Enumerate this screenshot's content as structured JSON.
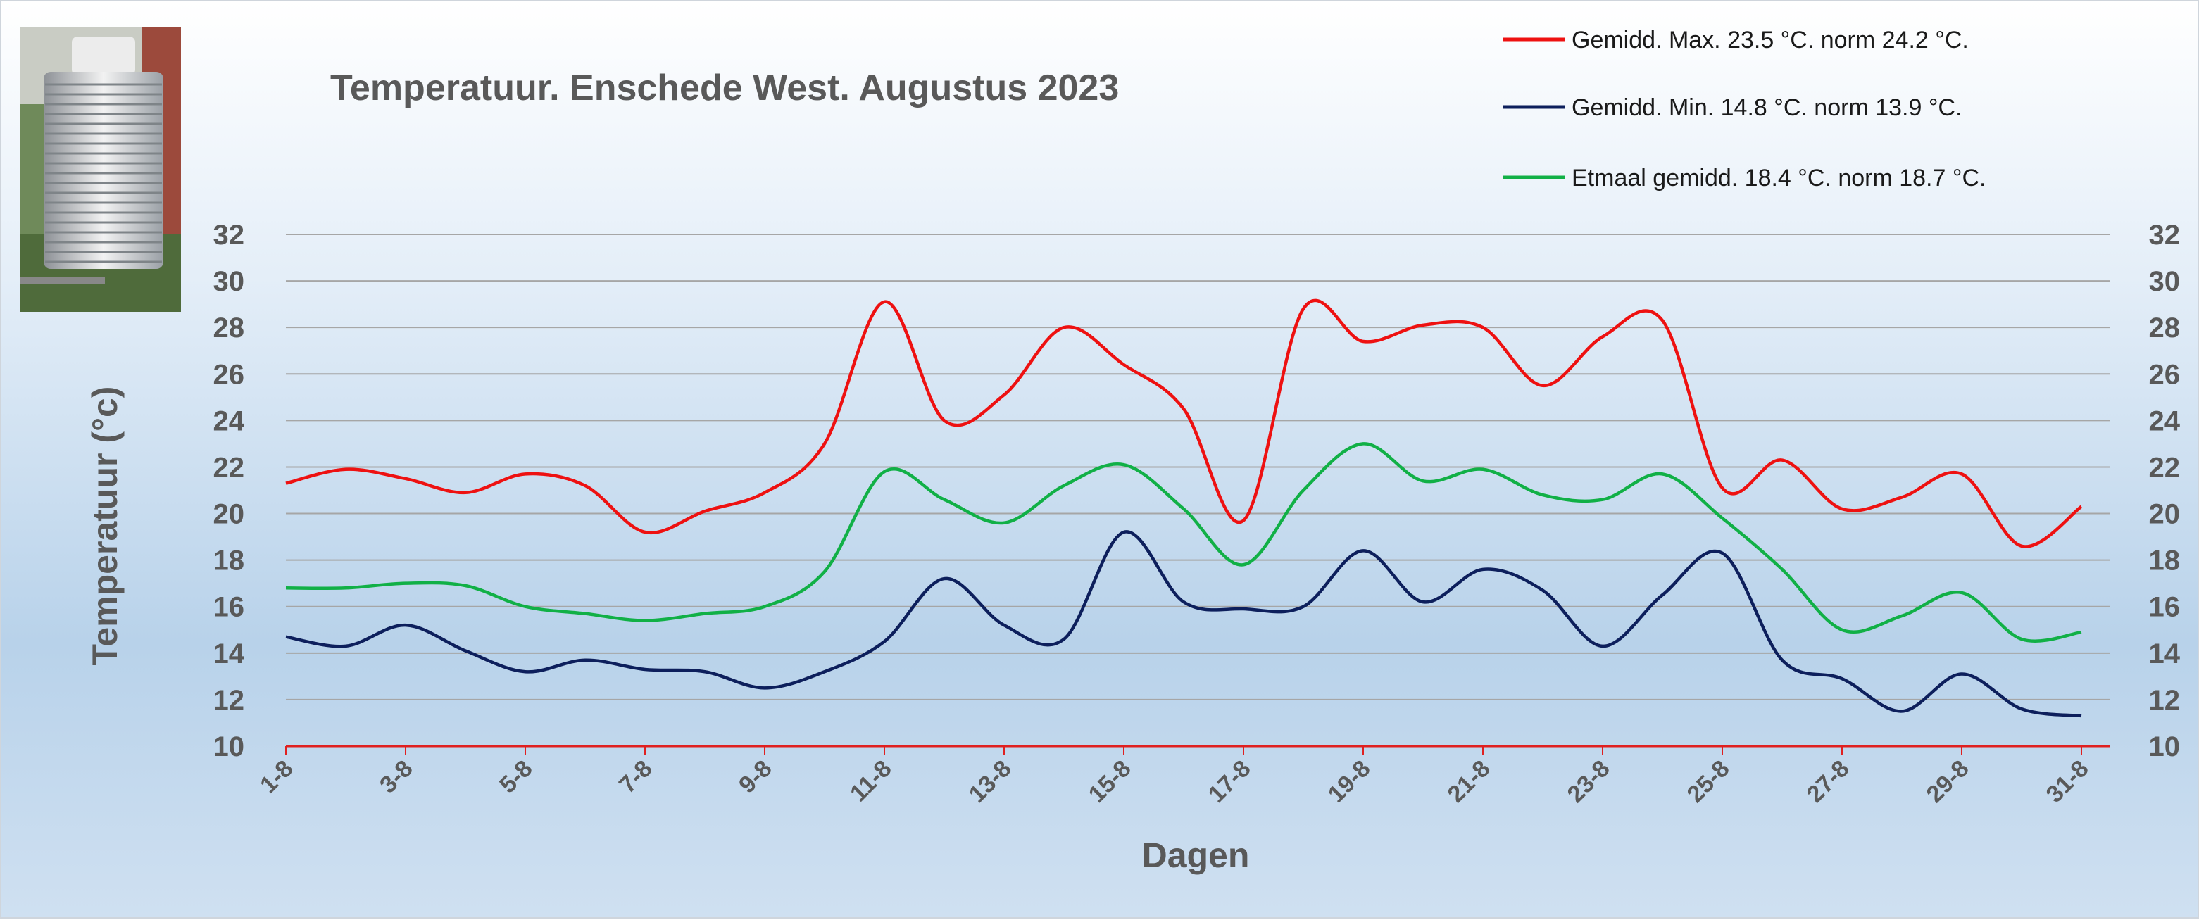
{
  "chart_data": {
    "type": "line",
    "title": "Temperatuur. Enschede West. Augustus 2023",
    "xlabel": "Dagen",
    "ylabel": "Temperatuur (°c)",
    "ylim": [
      10,
      32
    ],
    "yticks": [
      10,
      12,
      14,
      16,
      18,
      20,
      22,
      24,
      26,
      28,
      30,
      32
    ],
    "grid": true,
    "legend_position": "top-right",
    "categories": [
      "1-8",
      "2-8",
      "3-8",
      "4-8",
      "5-8",
      "6-8",
      "7-8",
      "8-8",
      "9-8",
      "10-8",
      "11-8",
      "12-8",
      "13-8",
      "14-8",
      "15-8",
      "16-8",
      "17-8",
      "18-8",
      "19-8",
      "20-8",
      "21-8",
      "22-8",
      "23-8",
      "24-8",
      "25-8",
      "26-8",
      "27-8",
      "28-8",
      "29-8",
      "30-8",
      "31-8"
    ],
    "x_tick_labels": [
      "1-8",
      "3-8",
      "5-8",
      "7-8",
      "9-8",
      "11-8",
      "13-8",
      "15-8",
      "17-8",
      "19-8",
      "21-8",
      "23-8",
      "25-8",
      "27-8",
      "29-8",
      "31-8"
    ],
    "series": [
      {
        "name": "Gemidd. Max. 23.5 °C. norm 24.2 °C.",
        "color": "#ee1111",
        "values": [
          21.3,
          21.9,
          21.5,
          20.9,
          21.7,
          21.2,
          19.2,
          20.1,
          20.9,
          23.0,
          29.1,
          24.0,
          25.1,
          28.0,
          26.4,
          24.5,
          19.7,
          28.8,
          27.4,
          28.1,
          28.0,
          25.5,
          27.6,
          28.3,
          21.1,
          22.3,
          20.2,
          20.7,
          21.7,
          18.6,
          20.3
        ]
      },
      {
        "name": "Gemidd. Min. 14.8 °C. norm 13.9 °C.",
        "color": "#0d1f5c",
        "values": [
          14.7,
          14.3,
          15.2,
          14.1,
          13.2,
          13.7,
          13.3,
          13.2,
          12.5,
          13.2,
          14.5,
          17.2,
          15.2,
          14.6,
          19.2,
          16.2,
          15.9,
          16.0,
          18.4,
          16.2,
          17.6,
          16.7,
          14.3,
          16.5,
          18.3,
          13.7,
          12.9,
          11.5,
          13.1,
          11.6,
          11.3
        ]
      },
      {
        "name": "Etmaal gemidd. 18.4 °C. norm 18.7 °C.",
        "color": "#11b046",
        "values": [
          16.8,
          16.8,
          17.0,
          16.9,
          16.0,
          15.7,
          15.4,
          15.7,
          16.0,
          17.5,
          21.8,
          20.6,
          19.6,
          21.2,
          22.1,
          20.2,
          17.8,
          21.0,
          23.0,
          21.4,
          21.9,
          20.8,
          20.6,
          21.7,
          19.8,
          17.6,
          15.0,
          15.6,
          16.6,
          14.6,
          14.9
        ]
      }
    ]
  },
  "icons": {
    "photo": "weather-station-screen-photo"
  }
}
